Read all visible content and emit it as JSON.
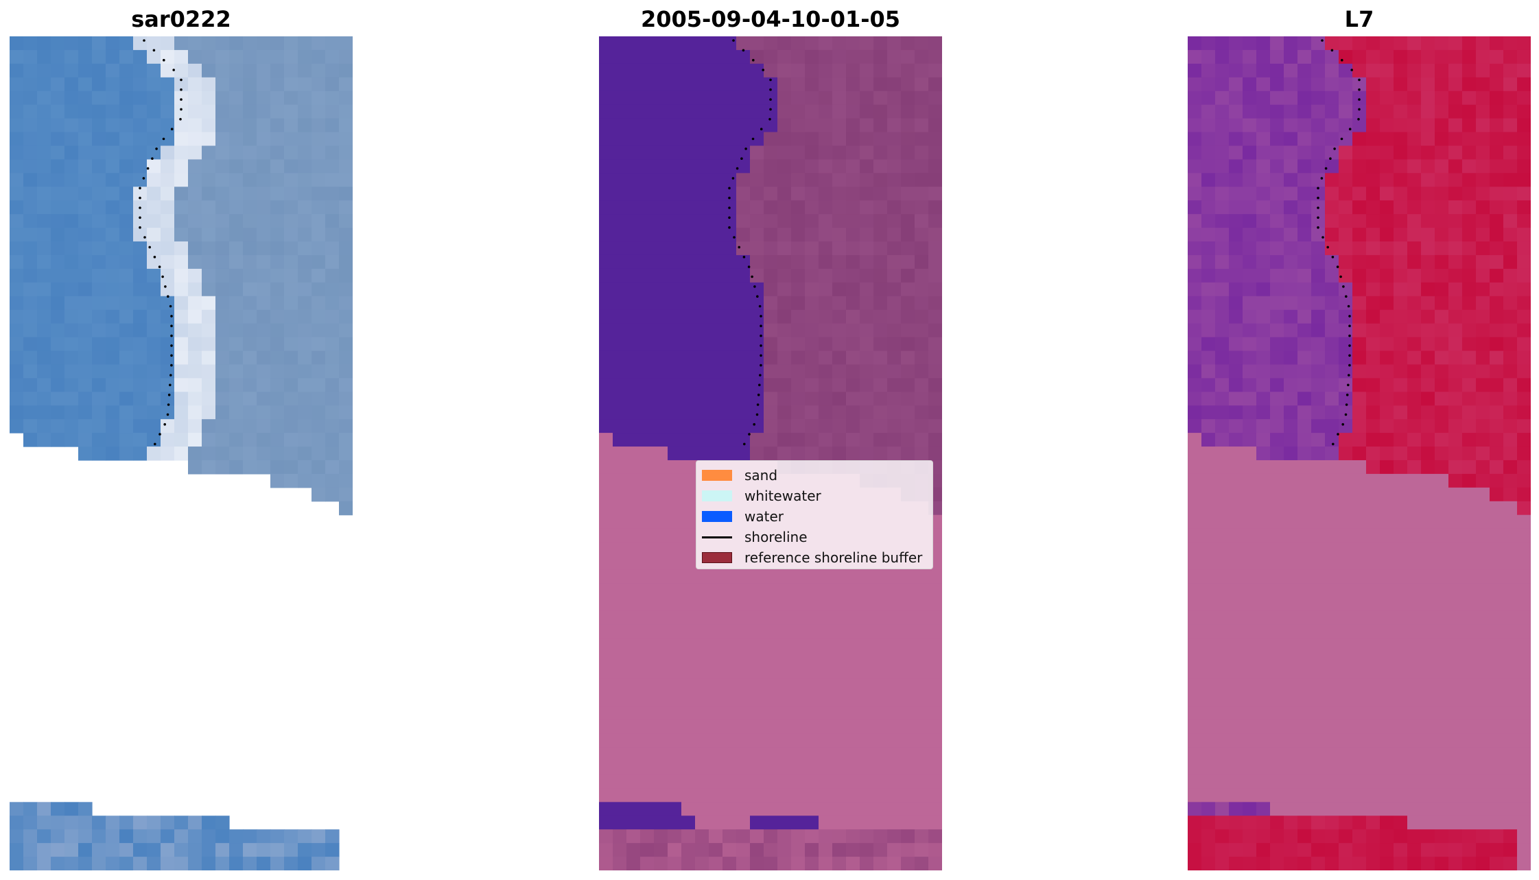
{
  "panels": [
    {
      "title": "sar0222",
      "kind": "rgb"
    },
    {
      "title": "2005-09-04-10-01-05",
      "kind": "classified"
    },
    {
      "title": "L7",
      "kind": "index"
    }
  ],
  "legend": {
    "items": [
      {
        "label": "sand",
        "color": "#ff8c40",
        "type": "patch"
      },
      {
        "label": "whitewater",
        "color": "#ccf5f5",
        "type": "patch"
      },
      {
        "label": "water",
        "color": "#0a5cff",
        "type": "patch"
      },
      {
        "label": "shoreline",
        "color": "#000000",
        "type": "line"
      },
      {
        "label": "reference shoreline buffer",
        "color": "#9b2d3c",
        "type": "patch"
      }
    ]
  },
  "colors": {
    "rgb_water": "#4a82c0",
    "rgb_land": "#7f9ec4",
    "rgb_white": "#e6ecf6",
    "classified_water": "#55239a",
    "classified_land": "#873f78",
    "classified_nodata": "#bd6798",
    "index_water": "#7a2ba0",
    "index_land": "#c60d3f",
    "index_nodata": "#bd6798",
    "shoreline": "#000000"
  }
}
